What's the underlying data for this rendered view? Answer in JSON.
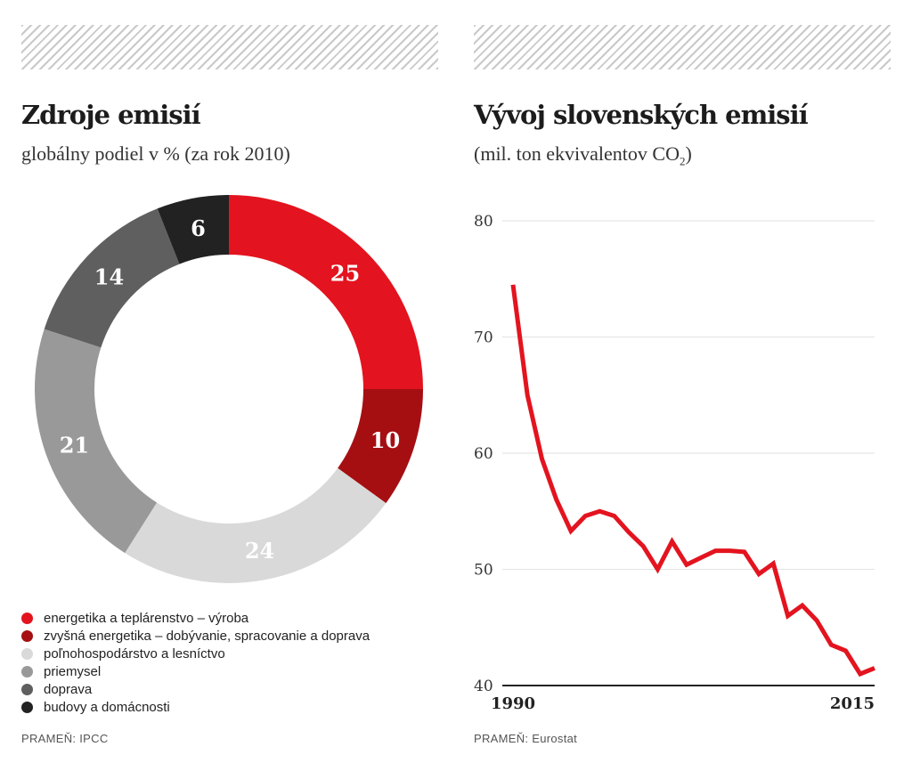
{
  "left": {
    "title": "Zdroje emisií",
    "subtitle": "globálny podiel v % (za rok 2010)",
    "source": "PRAMEŇ: IPCC"
  },
  "right": {
    "title": "Vývoj slovenských emisií",
    "subtitle_main": "(mil. ton ekvivalentov CO",
    "subtitle_sub": "2",
    "subtitle_end": ")",
    "source": "PRAMEŇ: Eurostat"
  },
  "chart_data": [
    {
      "type": "pie",
      "variant": "donut",
      "title": "Zdroje emisií",
      "subtitle": "globálny podiel v % (za rok 2010)",
      "labels": [
        "energetika a teplárenstvo – výroba",
        "zvyšná energetika – dobývanie, spracovanie a doprava",
        "poľnohospodárstvo a lesníctvo",
        "priemysel",
        "doprava",
        "budovy a domácnosti"
      ],
      "values": [
        25,
        10,
        24,
        21,
        14,
        6
      ],
      "colors": [
        "#e3141f",
        "#a50f12",
        "#d9d9d9",
        "#999999",
        "#5f5f5f",
        "#222222"
      ],
      "label_colors": [
        "#ffffff",
        "#ffffff",
        "#ffffff",
        "#ffffff",
        "#ffffff",
        "#ffffff"
      ],
      "legend_position": "bottom-left"
    },
    {
      "type": "line",
      "title": "Vývoj slovenských emisií",
      "ylabel": "mil. ton ekvivalentov CO2",
      "x": [
        1990,
        1991,
        1992,
        1993,
        1994,
        1995,
        1996,
        1997,
        1998,
        1999,
        2000,
        2001,
        2002,
        2003,
        2004,
        2005,
        2006,
        2007,
        2008,
        2009,
        2010,
        2011,
        2012,
        2013,
        2014,
        2015
      ],
      "values": [
        74.5,
        65,
        59.5,
        56,
        53.3,
        54.6,
        55,
        54.6,
        53.2,
        52,
        50,
        52.4,
        50.4,
        51,
        51.6,
        51.6,
        51.5,
        49.6,
        50.5,
        46,
        46.9,
        45.6,
        43.5,
        43,
        41,
        41.5
      ],
      "color": "#e3141f",
      "ylim": [
        40,
        80
      ],
      "yticks": [
        40,
        50,
        60,
        70,
        80
      ],
      "xticks": [
        1990,
        2015
      ],
      "grid": true
    }
  ]
}
